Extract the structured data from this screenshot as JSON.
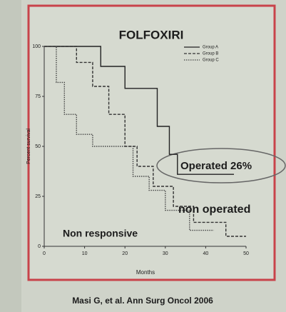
{
  "chart_data": {
    "type": "line",
    "title": "FOLFOXIRI",
    "x_label": "Months",
    "y_label": "Percent survival",
    "xlim": [
      0,
      50
    ],
    "ylim": [
      0,
      100
    ],
    "xticks": [
      0,
      10,
      20,
      30,
      40,
      50
    ],
    "yticks": [
      0,
      25,
      50,
      75,
      100
    ],
    "step": true,
    "series": [
      {
        "name": "Group A",
        "color": "#222222",
        "x": [
          0,
          14,
          14,
          20,
          20,
          28,
          28,
          31,
          31,
          33,
          33,
          47
        ],
        "values": [
          100,
          100,
          90,
          90,
          79,
          79,
          60,
          60,
          46,
          46,
          36,
          36
        ]
      },
      {
        "name": "Group B",
        "color": "#333333",
        "x": [
          0,
          8,
          8,
          12,
          12,
          16,
          16,
          20,
          20,
          23,
          23,
          27,
          27,
          32,
          32,
          37,
          37,
          45,
          45,
          50
        ],
        "values": [
          100,
          100,
          92,
          92,
          80,
          80,
          66,
          66,
          50,
          50,
          40,
          40,
          30,
          30,
          20,
          20,
          12,
          12,
          5,
          5
        ]
      },
      {
        "name": "Group C",
        "color": "#444444",
        "x": [
          0,
          3,
          3,
          5,
          5,
          8,
          8,
          12,
          12,
          22,
          22,
          26,
          26,
          30,
          30,
          36,
          36,
          42
        ],
        "values": [
          100,
          100,
          82,
          82,
          66,
          66,
          56,
          56,
          50,
          50,
          35,
          35,
          28,
          28,
          18,
          18,
          8,
          8
        ]
      }
    ],
    "annotations": [
      "Operated 26%",
      "non operated",
      "Non responsive"
    ],
    "source": "Masi G, et al. Ann Surg Oncol 2006"
  }
}
